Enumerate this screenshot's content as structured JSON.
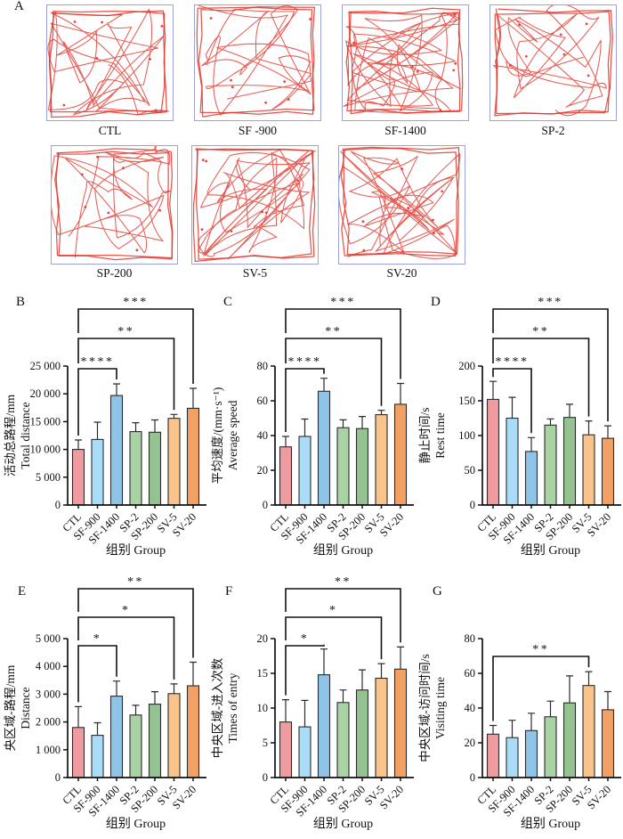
{
  "panel_a": {
    "letter": "A",
    "plots": [
      {
        "label": "CTL"
      },
      {
        "label": "SF -900"
      },
      {
        "label": "SF-1400"
      },
      {
        "label": "SP-2"
      },
      {
        "label": "SP-200"
      },
      {
        "label": "SV-5"
      },
      {
        "label": "SV-20"
      }
    ],
    "box_border_color": "#9aa2d8",
    "trace_color": "#e0352b"
  },
  "shared": {
    "categories": [
      "CTL",
      "SF-900",
      "SF-1400",
      "SP-2",
      "SP-200",
      "SV-5",
      "SV-20"
    ],
    "bar_colors": [
      "#F09B9F",
      "#A9DCF7",
      "#8FC4E8",
      "#A9D3A4",
      "#95C291",
      "#F8C48C",
      "#F2A063"
    ],
    "bar_edge_color": "#2b2b2b",
    "axis_color": "#111111",
    "xlabel": "组别 Group"
  },
  "chart_data": [
    {
      "panel_letter": "B",
      "type": "bar",
      "ylabel_cn": "活动总路程/mm",
      "ylabel_en": "Total distance",
      "ylim": [
        0,
        25000
      ],
      "yticks": [
        0,
        5000,
        10000,
        15000,
        20000,
        25000
      ],
      "ytick_labels": [
        "0",
        "5 000",
        "10 000",
        "15 000",
        "20 000",
        "25 000"
      ],
      "values": [
        10000,
        11800,
        19700,
        13200,
        13100,
        15600,
        17400
      ],
      "errors": [
        1700,
        3100,
        2100,
        1600,
        2200,
        700,
        3600
      ],
      "significance": [
        {
          "from": "CTL",
          "to": "SF-1400",
          "label": "****",
          "offset": -3
        },
        {
          "from": "CTL",
          "to": "SV-5",
          "label": "**",
          "offset": 31
        },
        {
          "from": "CTL",
          "to": "SV-20",
          "label": "***",
          "offset": 64
        }
      ]
    },
    {
      "panel_letter": "C",
      "type": "bar",
      "ylabel_cn": "平均速度/(mm·s⁻¹)",
      "ylabel_en": "Average speed",
      "ylim": [
        0,
        80
      ],
      "yticks": [
        0,
        20,
        40,
        60,
        80
      ],
      "ytick_labels": [
        "0",
        "20",
        "40",
        "60",
        "80"
      ],
      "values": [
        33.5,
        39.5,
        65.5,
        44.5,
        44,
        52,
        58
      ],
      "errors": [
        6,
        10,
        7.5,
        4.5,
        7,
        2.5,
        12
      ],
      "significance": [
        {
          "from": "CTL",
          "to": "SF-1400",
          "label": "****",
          "offset": -3
        },
        {
          "from": "CTL",
          "to": "SV-5",
          "label": "**",
          "offset": 31
        },
        {
          "from": "CTL",
          "to": "SV-20",
          "label": "***",
          "offset": 64
        }
      ]
    },
    {
      "panel_letter": "D",
      "type": "bar",
      "ylabel_cn": "静止时间/s",
      "ylabel_en": "Rest time",
      "ylim": [
        0,
        200
      ],
      "yticks": [
        0,
        50,
        100,
        150,
        200
      ],
      "ytick_labels": [
        "0",
        "50",
        "100",
        "150",
        "200"
      ],
      "values": [
        152,
        125,
        77,
        115,
        126,
        101,
        96
      ],
      "errors": [
        26,
        30,
        20,
        9,
        19,
        20,
        18
      ],
      "significance": [
        {
          "from": "CTL",
          "to": "SF-1400",
          "label": "****",
          "offset": -3
        },
        {
          "from": "CTL",
          "to": "SV-5",
          "label": "**",
          "offset": 31
        },
        {
          "from": "CTL",
          "to": "SV-20",
          "label": "***",
          "offset": 64
        }
      ]
    },
    {
      "panel_letter": "E",
      "type": "bar",
      "ylabel_cn": "央区域-路程/mm",
      "ylabel_en": "Distance",
      "ylim": [
        0,
        5000
      ],
      "yticks": [
        0,
        1000,
        2000,
        3000,
        4000,
        5000
      ],
      "ytick_labels": [
        "0",
        "1 000",
        "2 000",
        "3 000",
        "4 000",
        "5 000"
      ],
      "values": [
        1800,
        1520,
        2930,
        2250,
        2640,
        3020,
        3300
      ],
      "errors": [
        750,
        450,
        540,
        350,
        450,
        350,
        850
      ],
      "significance": [
        {
          "from": "CTL",
          "to": "SF-1400",
          "label": "*",
          "offset": -8
        },
        {
          "from": "CTL",
          "to": "SV-5",
          "label": "*",
          "offset": 24
        },
        {
          "from": "CTL",
          "to": "SV-20",
          "label": "**",
          "offset": 56
        }
      ]
    },
    {
      "panel_letter": "F",
      "type": "bar",
      "ylabel_cn": "中央区域-进入次数",
      "ylabel_en": "Times of entry",
      "ylim": [
        0,
        20
      ],
      "yticks": [
        0,
        5,
        10,
        15,
        20
      ],
      "ytick_labels": [
        "0",
        "5",
        "10",
        "15",
        "20"
      ],
      "values": [
        8,
        7.3,
        14.8,
        10.8,
        12.6,
        14.3,
        15.6
      ],
      "errors": [
        3.2,
        3.8,
        3.7,
        1.8,
        2.9,
        2.1,
        3.2
      ],
      "significance": [
        {
          "from": "CTL",
          "to": "SF-1400",
          "label": "*",
          "offset": -8
        },
        {
          "from": "CTL",
          "to": "SV-5",
          "label": "*",
          "offset": 24
        },
        {
          "from": "CTL",
          "to": "SV-20",
          "label": "**",
          "offset": 56
        }
      ]
    },
    {
      "panel_letter": "G",
      "type": "bar",
      "ylabel_cn": "中央区域-访问时间/s",
      "ylabel_en": "Visiting time",
      "ylim": [
        0,
        80
      ],
      "yticks": [
        0,
        20,
        40,
        60,
        80
      ],
      "ytick_labels": [
        "0",
        "20",
        "40",
        "60",
        "80"
      ],
      "values": [
        25,
        23,
        27,
        35,
        43,
        53,
        39
      ],
      "errors": [
        5,
        10,
        10,
        9,
        15.5,
        8,
        10.5
      ],
      "significance": [
        {
          "from": "CTL",
          "to": "SV-5",
          "label": "**",
          "offset": -20
        }
      ]
    }
  ]
}
